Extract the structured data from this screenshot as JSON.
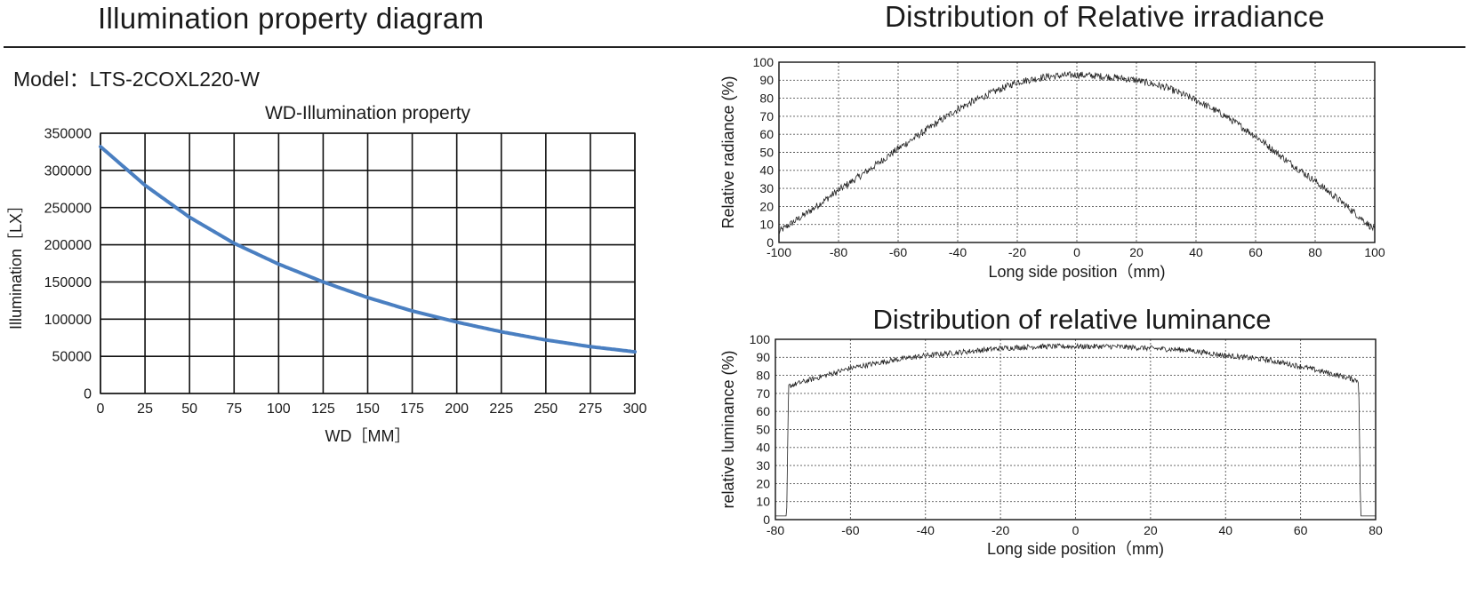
{
  "page": {
    "left_title": "Illumination property diagram",
    "right_title": "Distribution of Relative irradiance",
    "model_label": "Model：",
    "model_value": "LTS-2COXL220-W"
  },
  "colors": {
    "curve": "#4a7fc1",
    "axis": "#111111",
    "grid_dotted": "#555555",
    "noisy_trace": "#222222"
  },
  "chart_data": [
    {
      "id": "wd-illumination",
      "type": "line",
      "title": "WD-Illumination property",
      "xlabel": "WD［MM］",
      "ylabel": "Illumination［LX］",
      "xlim": [
        0,
        300
      ],
      "ylim": [
        0,
        350000
      ],
      "xticks": [
        0,
        25,
        50,
        75,
        100,
        125,
        150,
        175,
        200,
        225,
        250,
        275,
        300
      ],
      "yticks": [
        0,
        50000,
        100000,
        150000,
        200000,
        250000,
        300000,
        350000
      ],
      "grid": "solid",
      "series": [
        {
          "x": [
            0,
            25,
            50,
            75,
            100,
            125,
            150,
            175,
            200,
            225,
            250,
            275,
            300
          ],
          "y": [
            332000,
            280000,
            237000,
            202000,
            174000,
            150000,
            129000,
            111000,
            96000,
            83000,
            72000,
            63000,
            56000
          ]
        }
      ]
    },
    {
      "id": "relative-irradiance",
      "type": "line",
      "title": "Distribution of Relative irradiance",
      "xlabel": "Long side position（mm)",
      "ylabel": "Relative radiance (%)",
      "xlim": [
        -100,
        100
      ],
      "ylim": [
        0,
        100
      ],
      "xticks": [
        -100,
        -80,
        -60,
        -40,
        -20,
        0,
        20,
        40,
        60,
        80,
        100
      ],
      "yticks": [
        0,
        10,
        20,
        30,
        40,
        50,
        60,
        70,
        80,
        90,
        100
      ],
      "grid": "dotted",
      "series": [
        {
          "x": [
            -100,
            -90,
            -80,
            -70,
            -60,
            -50,
            -40,
            -30,
            -20,
            -10,
            0,
            10,
            20,
            30,
            40,
            50,
            60,
            70,
            80,
            90,
            100
          ],
          "y": [
            6,
            17,
            29,
            40,
            52,
            63,
            74,
            82,
            89,
            92,
            93,
            92,
            90,
            86,
            79,
            70,
            59,
            46,
            34,
            21,
            7
          ]
        }
      ]
    },
    {
      "id": "relative-luminance",
      "type": "line",
      "title": "Distribution of relative luminance",
      "xlabel": "Long side position（mm)",
      "ylabel": "relative luminance (%)",
      "xlim": [
        -80,
        80
      ],
      "ylim": [
        0,
        100
      ],
      "xticks": [
        -80,
        -60,
        -40,
        -20,
        0,
        20,
        40,
        60,
        80
      ],
      "yticks": [
        0,
        10,
        20,
        30,
        40,
        50,
        60,
        70,
        80,
        90,
        100
      ],
      "grid": "dotted",
      "series": [
        {
          "x": [
            -80,
            -77,
            -76.5,
            -70,
            -60,
            -50,
            -40,
            -30,
            -20,
            -10,
            0,
            10,
            20,
            30,
            40,
            50,
            60,
            70,
            75.5,
            76,
            80
          ],
          "y": [
            2,
            2,
            74,
            78,
            84,
            88,
            91,
            93,
            95,
            96,
            96,
            96,
            95,
            94,
            91,
            89,
            85,
            80,
            77,
            2,
            2
          ]
        }
      ]
    }
  ]
}
